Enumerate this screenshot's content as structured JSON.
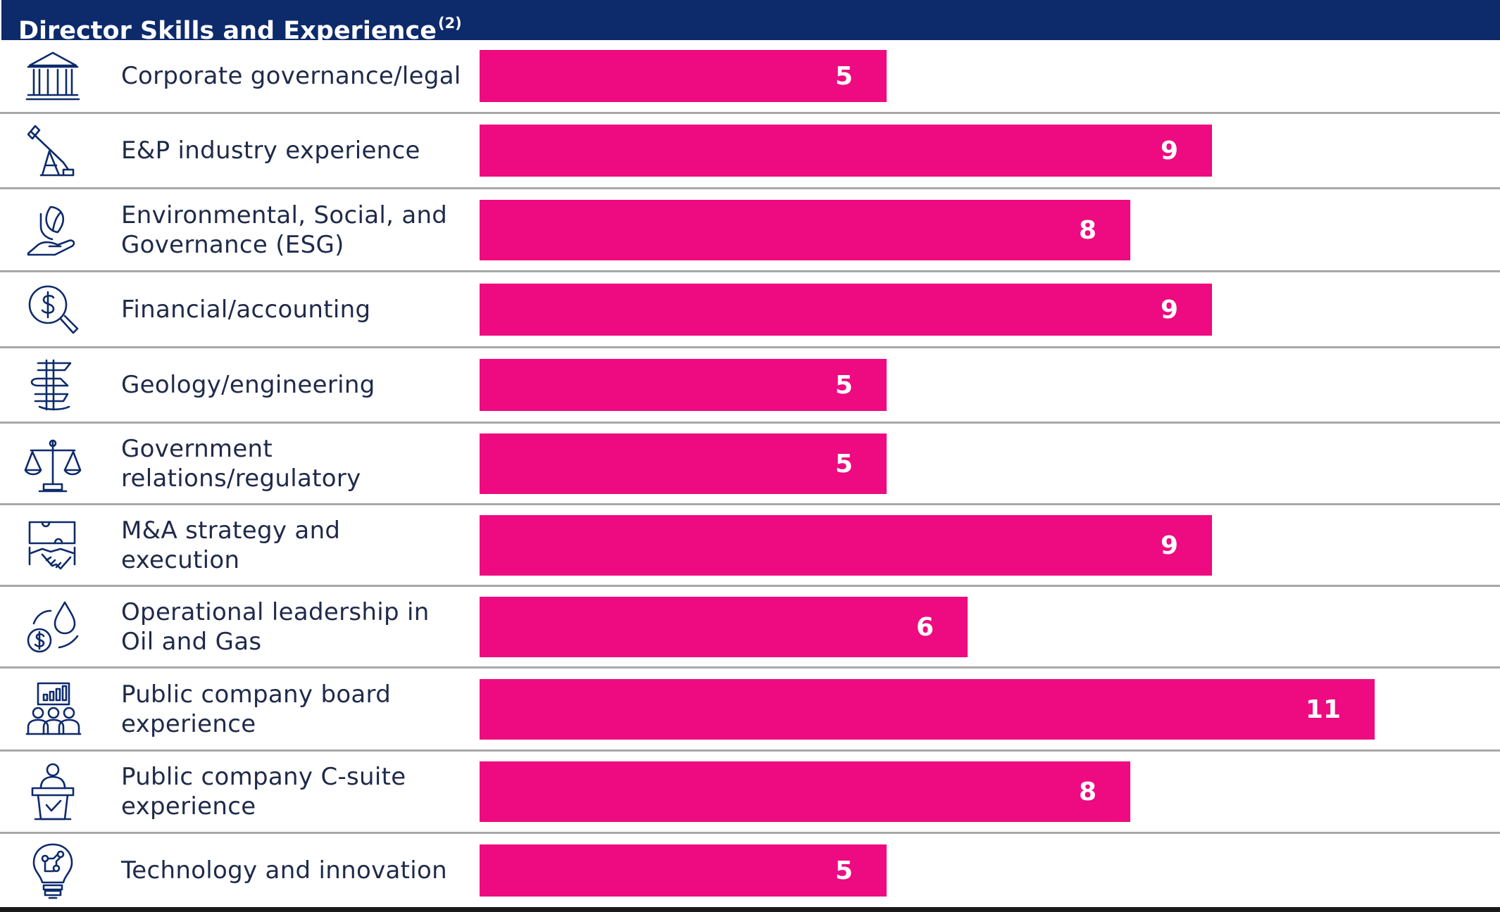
{
  "header": {
    "title": "Director Skills and Experience",
    "footnote": "(2)"
  },
  "colors": {
    "bar": "#ee0a80",
    "header": "#0d2a6b",
    "icon": "#0d2a6b",
    "text": "#1f2a4a"
  },
  "chart_data": {
    "type": "bar",
    "orientation": "horizontal",
    "title": "Director Skills and Experience",
    "categories": [
      "Corporate governance/legal",
      "E&P industry experience",
      "Environmental, Social, and Governance (ESG)",
      "Financial/accounting",
      "Geology/engineering",
      "Government relations/regulatory",
      "M&A strategy and execution",
      "Operational leadership in Oil and Gas",
      "Public company board experience",
      "Public company C-suite experience",
      "Technology and innovation"
    ],
    "display_labels": [
      "Corporate governance/legal",
      "E&P industry experience",
      "Environmental, Social, and\nGovernance (ESG)",
      "Financial/accounting",
      "Geology/engineering",
      "Government\nrelations/regulatory",
      "M&A strategy and\nexecution",
      "Operational leadership in\nOil and Gas",
      "Public company board\nexperience",
      "Public company C-suite\nexperience",
      "Technology and innovation"
    ],
    "icons": [
      "courthouse-icon",
      "oil-pump-icon",
      "leaf-hand-icon",
      "dollar-magnifier-icon",
      "rock-layers-icon",
      "scales-icon",
      "handshake-icon",
      "coin-drop-icon",
      "board-meeting-icon",
      "podium-speaker-icon",
      "lightbulb-circuit-icon"
    ],
    "values": [
      5,
      9,
      8,
      9,
      5,
      5,
      9,
      6,
      11,
      8,
      5
    ],
    "xlim": [
      0,
      11
    ],
    "grid": false,
    "legend": "none"
  }
}
